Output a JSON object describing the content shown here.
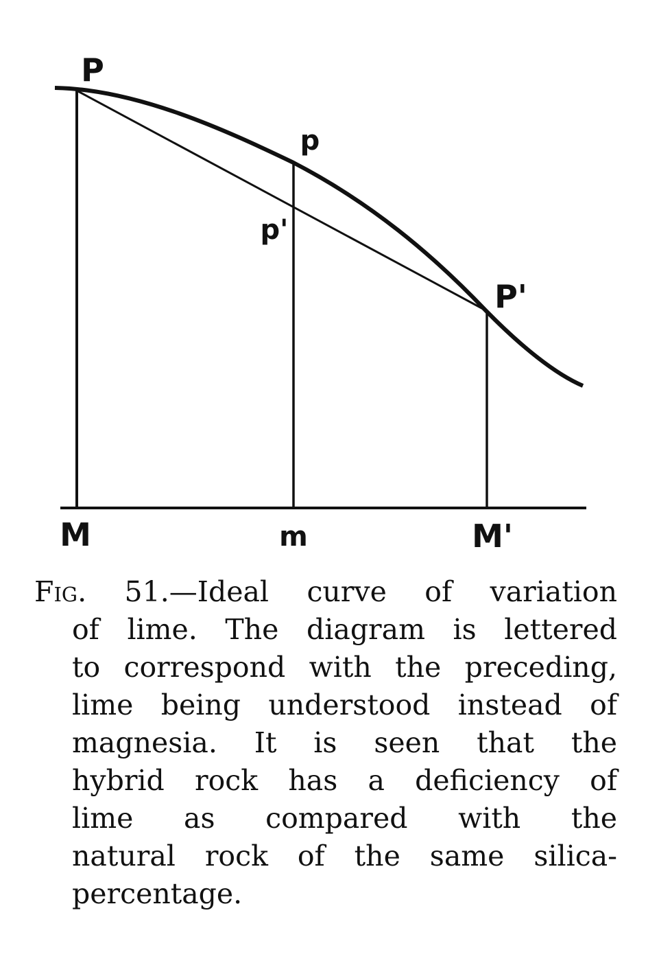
{
  "diagram": {
    "labels": {
      "P": "P",
      "p": "p",
      "p_prime": "p'",
      "P_prime": "P'",
      "M": "M",
      "m": "m",
      "M_prime": "M'"
    }
  },
  "caption": {
    "figure_label": "Fig. 51.",
    "lines": [
      "—Ideal curve of variation",
      "of lime.  The diagram is lettered",
      "to correspond with the preceding,",
      "lime being understood instead of",
      "magnesia.  It is seen that the",
      "hybrid rock has a deficiency of",
      "lime as compared with the",
      "natural rock of the same silica-",
      "percentage."
    ]
  }
}
